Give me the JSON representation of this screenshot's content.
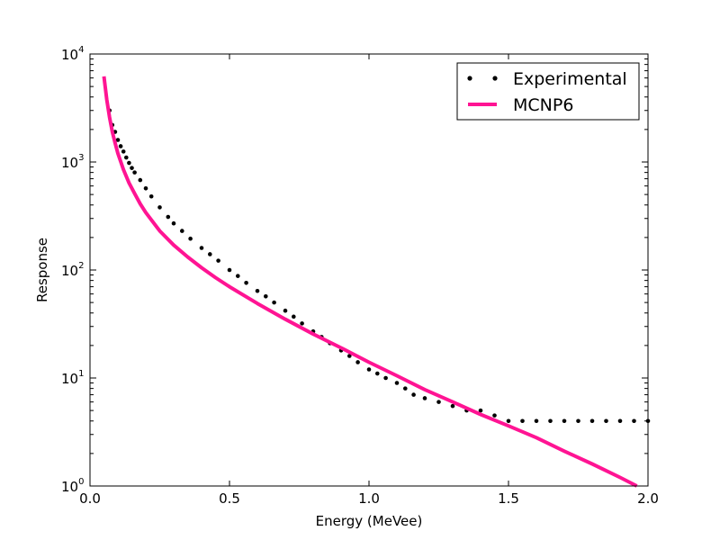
{
  "chart_data": {
    "type": "scatter",
    "xlabel": "Energy (MeVee)",
    "ylabel": "Response",
    "xlim": [
      0.0,
      2.0
    ],
    "ylim": [
      1,
      10000
    ],
    "yscale": "log",
    "grid": false,
    "legend_placement": "top-right",
    "x_ticks": [
      {
        "value": 0.0,
        "label": "0.0"
      },
      {
        "value": 0.5,
        "label": "0.5"
      },
      {
        "value": 1.0,
        "label": "1.0"
      },
      {
        "value": 1.5,
        "label": "1.5"
      },
      {
        "value": 2.0,
        "label": "2.0"
      }
    ],
    "y_ticks": [
      {
        "value": 1,
        "base": "10",
        "exp": "0"
      },
      {
        "value": 10,
        "base": "10",
        "exp": "1"
      },
      {
        "value": 100,
        "base": "10",
        "exp": "2"
      },
      {
        "value": 1000,
        "base": "10",
        "exp": "3"
      },
      {
        "value": 10000,
        "base": "10",
        "exp": "4"
      }
    ],
    "series": [
      {
        "name": "Experimental",
        "kind": "scatter",
        "color": "#000000",
        "marker": "dot",
        "x": [
          0.07,
          0.08,
          0.09,
          0.1,
          0.11,
          0.12,
          0.13,
          0.14,
          0.15,
          0.16,
          0.18,
          0.2,
          0.22,
          0.25,
          0.28,
          0.3,
          0.33,
          0.36,
          0.4,
          0.43,
          0.46,
          0.5,
          0.53,
          0.56,
          0.6,
          0.63,
          0.66,
          0.7,
          0.73,
          0.76,
          0.8,
          0.83,
          0.86,
          0.9,
          0.93,
          0.96,
          1.0,
          1.03,
          1.06,
          1.1,
          1.13,
          1.16,
          1.2,
          1.25,
          1.3,
          1.35,
          1.4,
          1.45,
          1.5,
          1.55,
          1.6,
          1.65,
          1.7,
          1.75,
          1.8,
          1.85,
          1.9,
          1.95,
          2.0
        ],
        "y": [
          3000,
          2200,
          1900,
          1600,
          1400,
          1250,
          1100,
          980,
          880,
          800,
          680,
          570,
          480,
          380,
          310,
          270,
          230,
          195,
          160,
          140,
          122,
          100,
          88,
          76,
          64,
          57,
          50,
          42,
          37,
          32,
          27,
          24,
          21,
          18,
          16,
          14,
          12,
          11,
          10,
          9,
          8,
          7,
          6.5,
          6,
          5.5,
          5,
          5,
          4.5,
          4,
          4,
          4,
          4,
          4,
          4,
          4,
          4,
          4,
          4,
          4
        ]
      },
      {
        "name": "MCNP6",
        "kind": "line",
        "color": "#ff1493",
        "x": [
          0.05,
          0.06,
          0.07,
          0.08,
          0.09,
          0.1,
          0.12,
          0.14,
          0.16,
          0.18,
          0.2,
          0.25,
          0.3,
          0.35,
          0.4,
          0.45,
          0.5,
          0.6,
          0.7,
          0.8,
          0.9,
          1.0,
          1.1,
          1.2,
          1.3,
          1.4,
          1.5,
          1.6,
          1.7,
          1.8,
          1.9,
          1.96
        ],
        "y": [
          6200,
          3800,
          2600,
          1900,
          1500,
          1200,
          850,
          640,
          510,
          410,
          340,
          230,
          170,
          132,
          105,
          85,
          70,
          49,
          35,
          25.5,
          19,
          14,
          10.5,
          7.8,
          6,
          4.6,
          3.6,
          2.8,
          2.1,
          1.6,
          1.2,
          1.0
        ]
      }
    ]
  }
}
